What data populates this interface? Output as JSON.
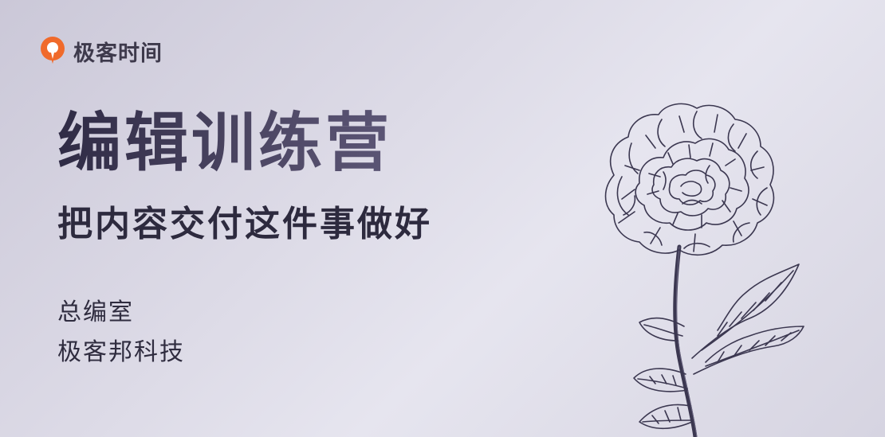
{
  "brand": {
    "name": "极客时间",
    "logo_icon": "geektime-logo-icon",
    "logo_color": "#f06a2b"
  },
  "title": "编辑训练营",
  "subtitle": "把内容交付这件事做好",
  "org": [
    "总编室",
    "极客邦科技"
  ],
  "illustration": {
    "icon": "peony-flower-icon"
  },
  "colors": {
    "background": "#dddbe7",
    "title": "#3a3550",
    "text": "#2d2a3e"
  }
}
